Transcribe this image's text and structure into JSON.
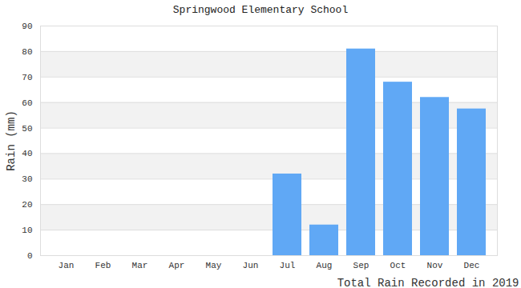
{
  "chart_data": {
    "type": "bar",
    "title": "Springwood Elementary School",
    "x_label": "Total Rain Recorded in 2019",
    "y_label": "Rain (mm)",
    "categories": [
      "Jan",
      "Feb",
      "Mar",
      "Apr",
      "May",
      "Jun",
      "Jul",
      "Aug",
      "Sep",
      "Oct",
      "Nov",
      "Dec"
    ],
    "values": [
      0,
      0,
      0,
      0,
      0,
      0,
      32,
      12,
      81,
      68,
      62,
      57.5
    ],
    "color": "#60a8f5",
    "ylim": [
      0,
      90
    ],
    "yticks": [
      0,
      10,
      20,
      30,
      40,
      50,
      60,
      70,
      80,
      90
    ],
    "grid": true
  }
}
